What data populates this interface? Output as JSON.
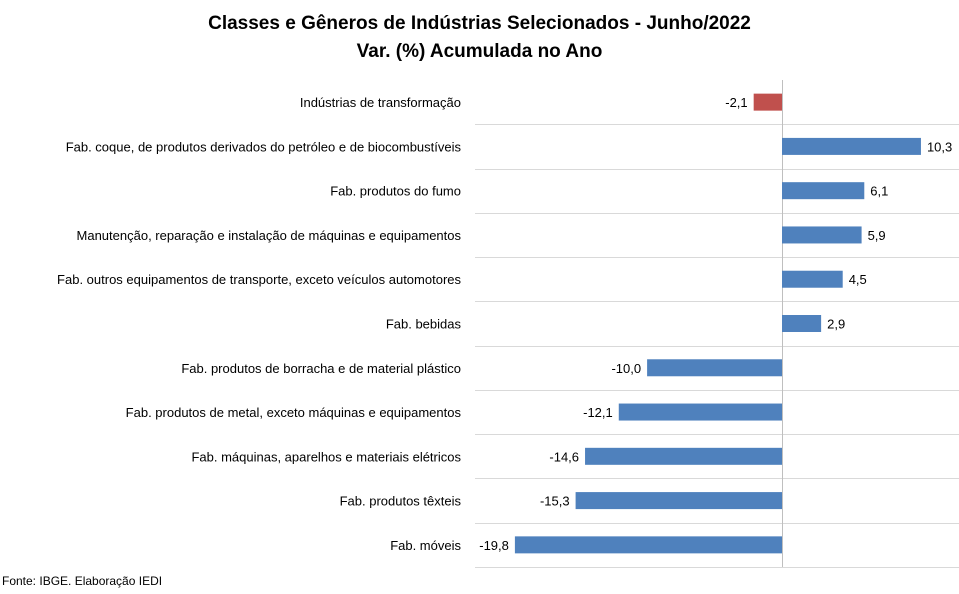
{
  "chart_data": {
    "type": "bar",
    "orientation": "horizontal",
    "title": "Classes e Gêneros de Indústrias Selecionados - Junho/2022",
    "subtitle": "Var. (%) Acumulada no Ano",
    "categories": [
      "Indústrias de transformação",
      "Fab. coque, de produtos derivados do petróleo e de biocombustíveis",
      "Fab. produtos do fumo",
      "Manutenção, reparação e instalação de máquinas e equipamentos",
      "Fab. outros equipamentos de transporte, exceto veículos automotores",
      "Fab. bebidas",
      "Fab. produtos de borracha e de material plástico",
      "Fab. produtos de metal, exceto máquinas e equipamentos",
      "Fab. máquinas, aparelhos e materiais elétricos",
      "Fab. produtos têxteis",
      "Fab. móveis"
    ],
    "values": [
      -2.1,
      10.3,
      6.1,
      5.9,
      4.5,
      2.9,
      -10.0,
      -12.1,
      -14.6,
      -15.3,
      -19.8
    ],
    "value_labels": [
      "-2,1",
      "10,3",
      "6,1",
      "5,9",
      "4,5",
      "2,9",
      "-10,0",
      "-12,1",
      "-14,6",
      "-15,3",
      "-19,8"
    ],
    "bar_colors": [
      "#c0504d",
      "#4f81bd",
      "#4f81bd",
      "#4f81bd",
      "#4f81bd",
      "#4f81bd",
      "#4f81bd",
      "#4f81bd",
      "#4f81bd",
      "#4f81bd",
      "#4f81bd"
    ],
    "xlim": [
      -22.5,
      10.3
    ],
    "grid": "horizontal separators",
    "legend": "none"
  },
  "source_note": "Fonte: IBGE. Elaboração IEDI"
}
